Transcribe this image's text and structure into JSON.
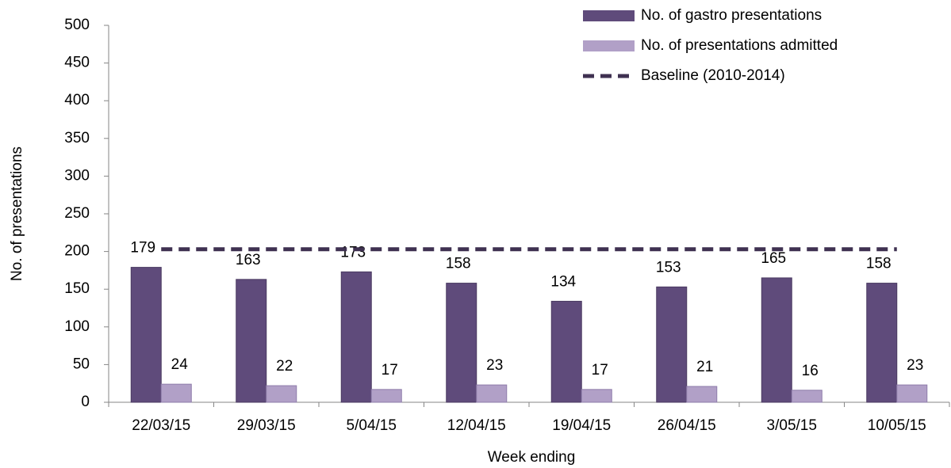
{
  "chart_data": {
    "type": "bar",
    "x_label": "Week ending",
    "y_label": "No. of presentations",
    "categories": [
      "22/03/15",
      "29/03/15",
      "5/04/15",
      "12/04/15",
      "19/04/15",
      "26/04/15",
      "3/05/15",
      "10/05/15"
    ],
    "series": [
      {
        "name": "No. of gastro presentations",
        "color": "#5f4b7b",
        "values": [
          179,
          163,
          173,
          158,
          134,
          153,
          165,
          158
        ]
      },
      {
        "name": "No. of presentations admitted",
        "color": "#b1a0c7",
        "values": [
          24,
          22,
          17,
          23,
          17,
          21,
          16,
          23
        ]
      },
      {
        "name": "Baseline (2010-2014)",
        "color": "#3f3151",
        "type": "line",
        "dashed": true,
        "values": [
          203,
          203,
          203,
          203,
          203,
          203,
          203,
          203
        ]
      }
    ],
    "ylim": [
      0,
      500
    ],
    "yticks": [
      0,
      50,
      100,
      150,
      200,
      250,
      300,
      350,
      400,
      450,
      500
    ],
    "legend": "top-right",
    "grid": false
  }
}
